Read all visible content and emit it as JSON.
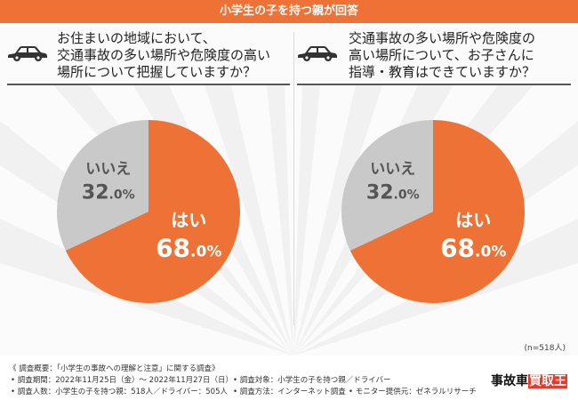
{
  "header": {
    "title": "小学生の子を持つ親が回答"
  },
  "questions": [
    {
      "lines": [
        "お住まいの地域において、",
        "交通事故の多い場所や危険度の高い",
        "場所について把握していますか？"
      ]
    },
    {
      "lines": [
        "交通事故の多い場所や危険度の",
        "高い場所について、お子さんに",
        "指導・教育はできていますか？"
      ]
    }
  ],
  "chart_data": [
    {
      "type": "pie",
      "slices": [
        {
          "label": "はい",
          "value": 68.0,
          "color": "#ee7236"
        },
        {
          "label": "いいえ",
          "value": 32.0,
          "color": "#c9c9c9"
        }
      ]
    },
    {
      "type": "pie",
      "slices": [
        {
          "label": "はい",
          "value": 68.0,
          "color": "#ee7236"
        },
        {
          "label": "いいえ",
          "value": 32.0,
          "color": "#c9c9c9"
        }
      ]
    }
  ],
  "sample_note": "(n=518人)",
  "footer": {
    "l1": "《 調査概要：「小学生の事故への理解と注意」に関する調査》",
    "l2": "• 調査期間：2022年11月25日（金）～ 2022年11月27日（日）",
    "l3": "• 調査対象：小学生の子を持つ親／ドライバー",
    "l4": "• 調査人数：小学生の子を持つ親：518人／ドライバー：505人",
    "l5": "• 調査方法：インターネット調査",
    "l6": "• モニター提供元：ゼネラルリサーチ",
    "logo_a": "事故車",
    "logo_b": "買取王"
  },
  "colors": {
    "accent": "#ee7236",
    "grey": "#c9c9c9"
  }
}
